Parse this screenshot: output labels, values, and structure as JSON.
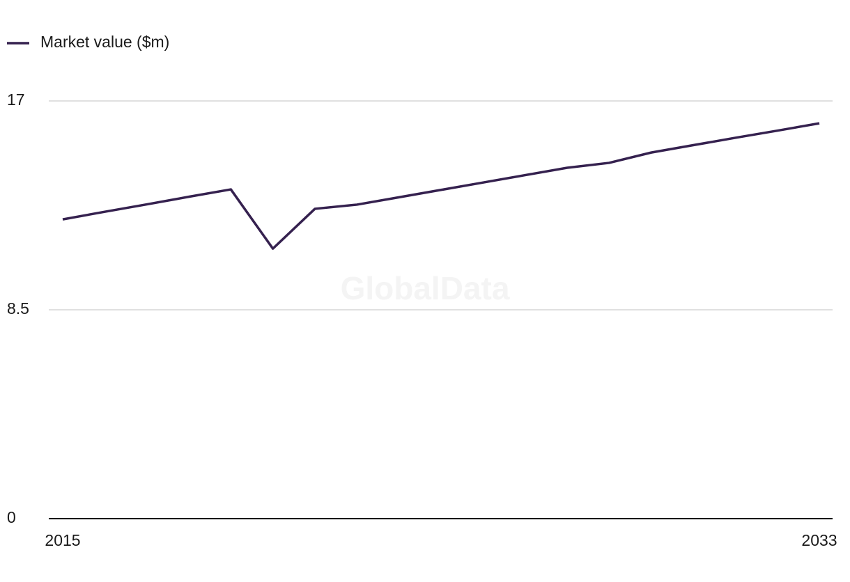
{
  "chart_data": {
    "type": "line",
    "watermark": "GlobalData",
    "x": [
      2015,
      2016,
      2017,
      2018,
      2019,
      2020,
      2021,
      2022,
      2023,
      2024,
      2025,
      2026,
      2027,
      2028,
      2029,
      2030,
      2031,
      2032,
      2033
    ],
    "series": [
      {
        "name": "Market value ($m)",
        "color": "#35214f",
        "values": [
          12.18,
          12.49,
          12.79,
          13.1,
          13.4,
          10.99,
          12.61,
          12.78,
          13.08,
          13.38,
          13.68,
          13.98,
          14.28,
          14.48,
          14.9,
          15.2,
          15.5,
          15.79,
          16.09
        ]
      }
    ],
    "xlim": [
      2015,
      2033
    ],
    "xticks": [
      2015,
      2033
    ],
    "ylim": [
      0,
      17
    ],
    "yticks": [
      0,
      8.5,
      17
    ],
    "grid": true,
    "legend": "top-left"
  }
}
